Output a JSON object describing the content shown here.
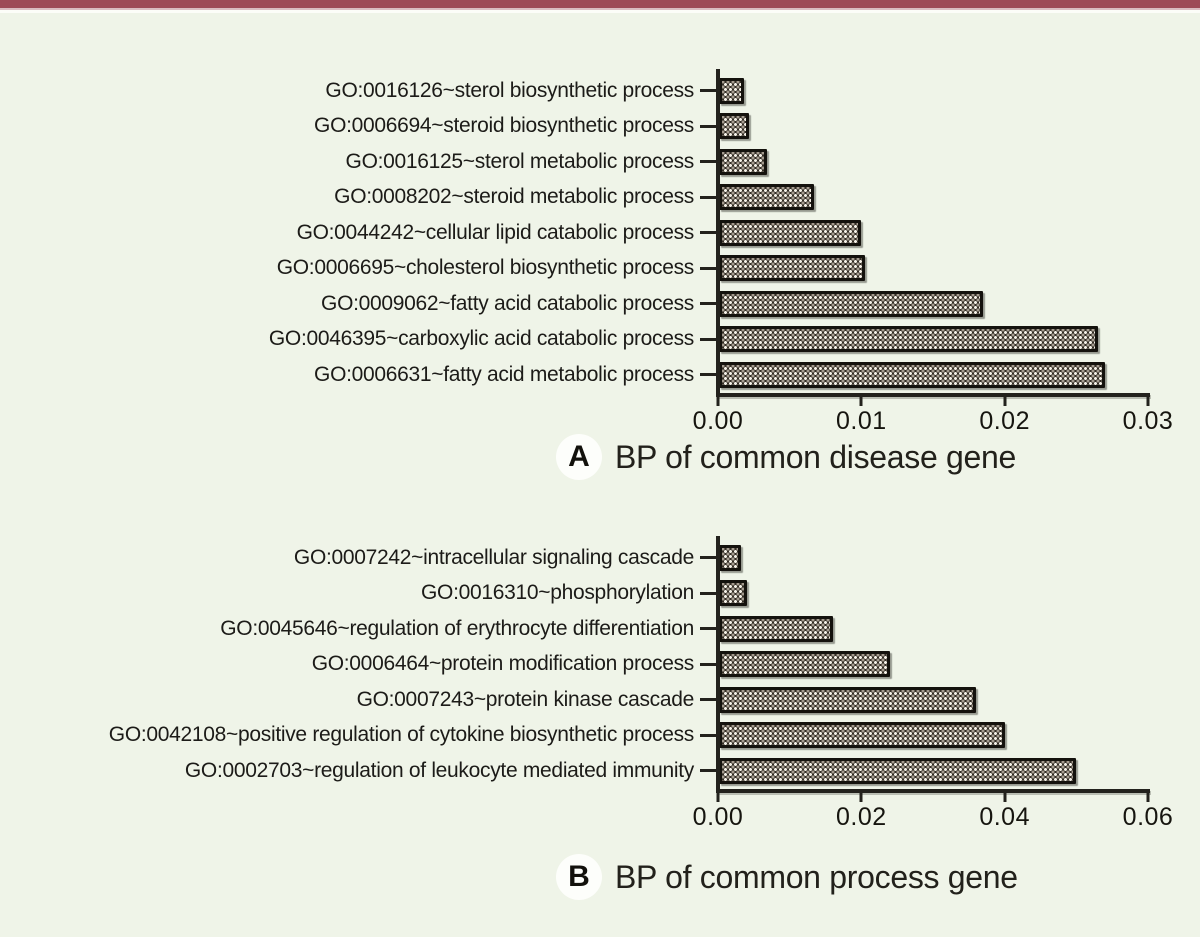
{
  "page": {
    "background_color": "#eff4e8",
    "top_bar_color": "#9d4a57"
  },
  "chart_data": [
    {
      "type": "bar",
      "orientation": "horizontal",
      "panel_letter": "A",
      "caption": "BP of common disease gene",
      "categories": [
        "GO:0016126~sterol biosynthetic process",
        "GO:0006694~steroid biosynthetic process",
        "GO:0016125~sterol metabolic process",
        "GO:0008202~steroid metabolic process",
        "GO:0044242~cellular lipid catabolic process",
        "GO:0006695~cholesterol biosynthetic process",
        "GO:0009062~fatty acid catabolic process",
        "GO:0046395~carboxylic acid catabolic process",
        "GO:0006631~fatty acid metabolic process"
      ],
      "values": [
        0.0013,
        0.0017,
        0.0029,
        0.0062,
        0.0095,
        0.0098,
        0.018,
        0.026,
        0.0265
      ],
      "xlim": [
        0,
        0.03
      ],
      "xtick_values": [
        0,
        0.01,
        0.02,
        0.03
      ],
      "xtick_labels": [
        "0.00",
        "0.01",
        "0.02",
        "0.03"
      ],
      "grid": false,
      "bar_style": "black-outline checkered hatch"
    },
    {
      "type": "bar",
      "orientation": "horizontal",
      "panel_letter": "B",
      "caption": "BP of common process gene",
      "categories": [
        "GO:0007242~intracellular signaling cascade",
        "GO:0016310~phosphorylation",
        "GO:0045646~regulation of erythrocyte differentiation",
        "GO:0006464~protein modification process",
        "GO:0007243~protein kinase cascade",
        "GO:0042108~positive regulation of cytokine biosynthetic process",
        "GO:0002703~regulation of leukocyte mediated immunity"
      ],
      "values": [
        0.0022,
        0.0031,
        0.015,
        0.023,
        0.035,
        0.039,
        0.049
      ],
      "xlim": [
        0,
        0.06
      ],
      "xtick_values": [
        0,
        0.02,
        0.04,
        0.06
      ],
      "xtick_labels": [
        "0.00",
        "0.02",
        "0.04",
        "0.06"
      ],
      "grid": false,
      "bar_style": "black-outline checkered hatch"
    }
  ]
}
